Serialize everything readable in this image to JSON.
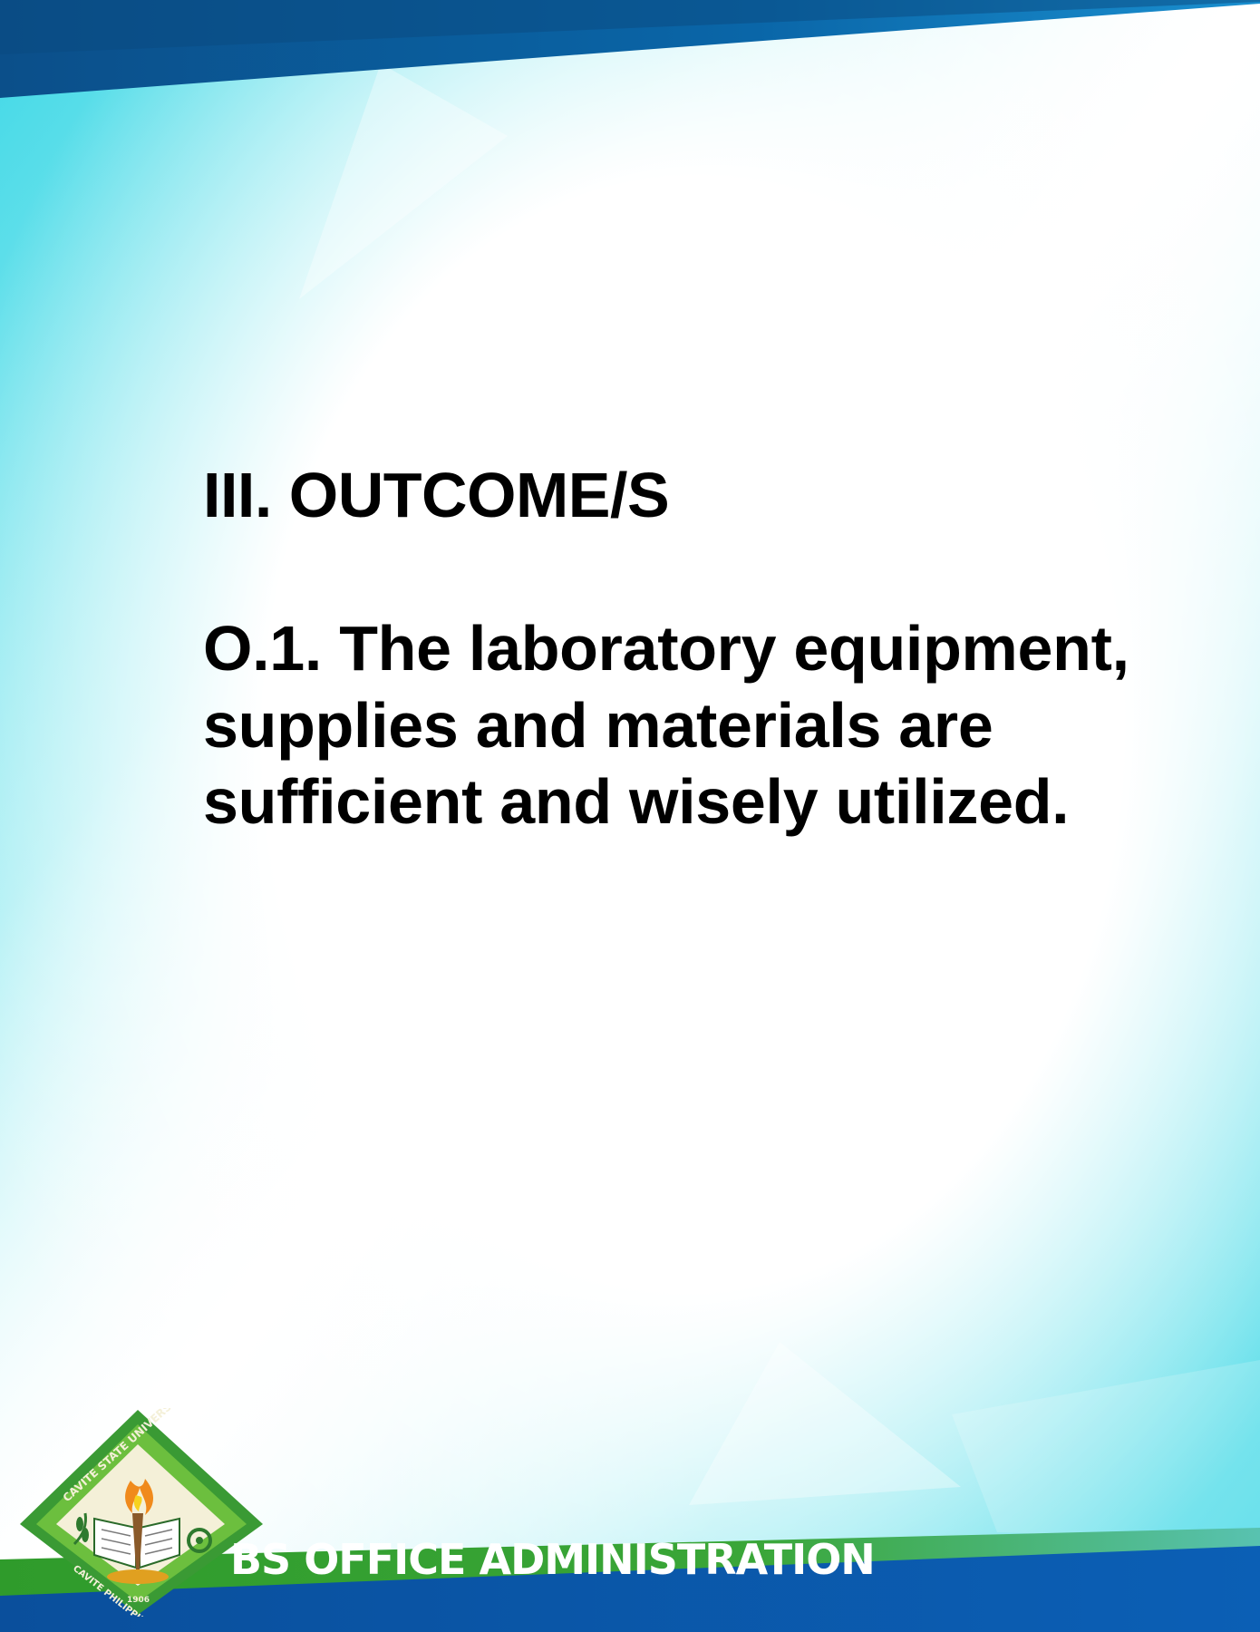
{
  "document": {
    "heading": "III. OUTCOME/S",
    "outcome_text": "O.1. The laboratory equipment, supplies and materials are sufficient and wisely utilized."
  },
  "footer": {
    "program_title": "BS OFFICE ADMINISTRATION"
  },
  "seal": {
    "icon": "university-seal-icon",
    "top_text": "CAVITE STATE UNIVERSITY",
    "bottom_text": "CAVITE PHILIPPINES",
    "year": "1906"
  },
  "colors": {
    "top_band": "#0a5a96",
    "cyan": "#5ee0ea",
    "green_band": "#2e9a2c",
    "blue_band": "#0a56a8",
    "seal_green": "#3a9a34"
  }
}
